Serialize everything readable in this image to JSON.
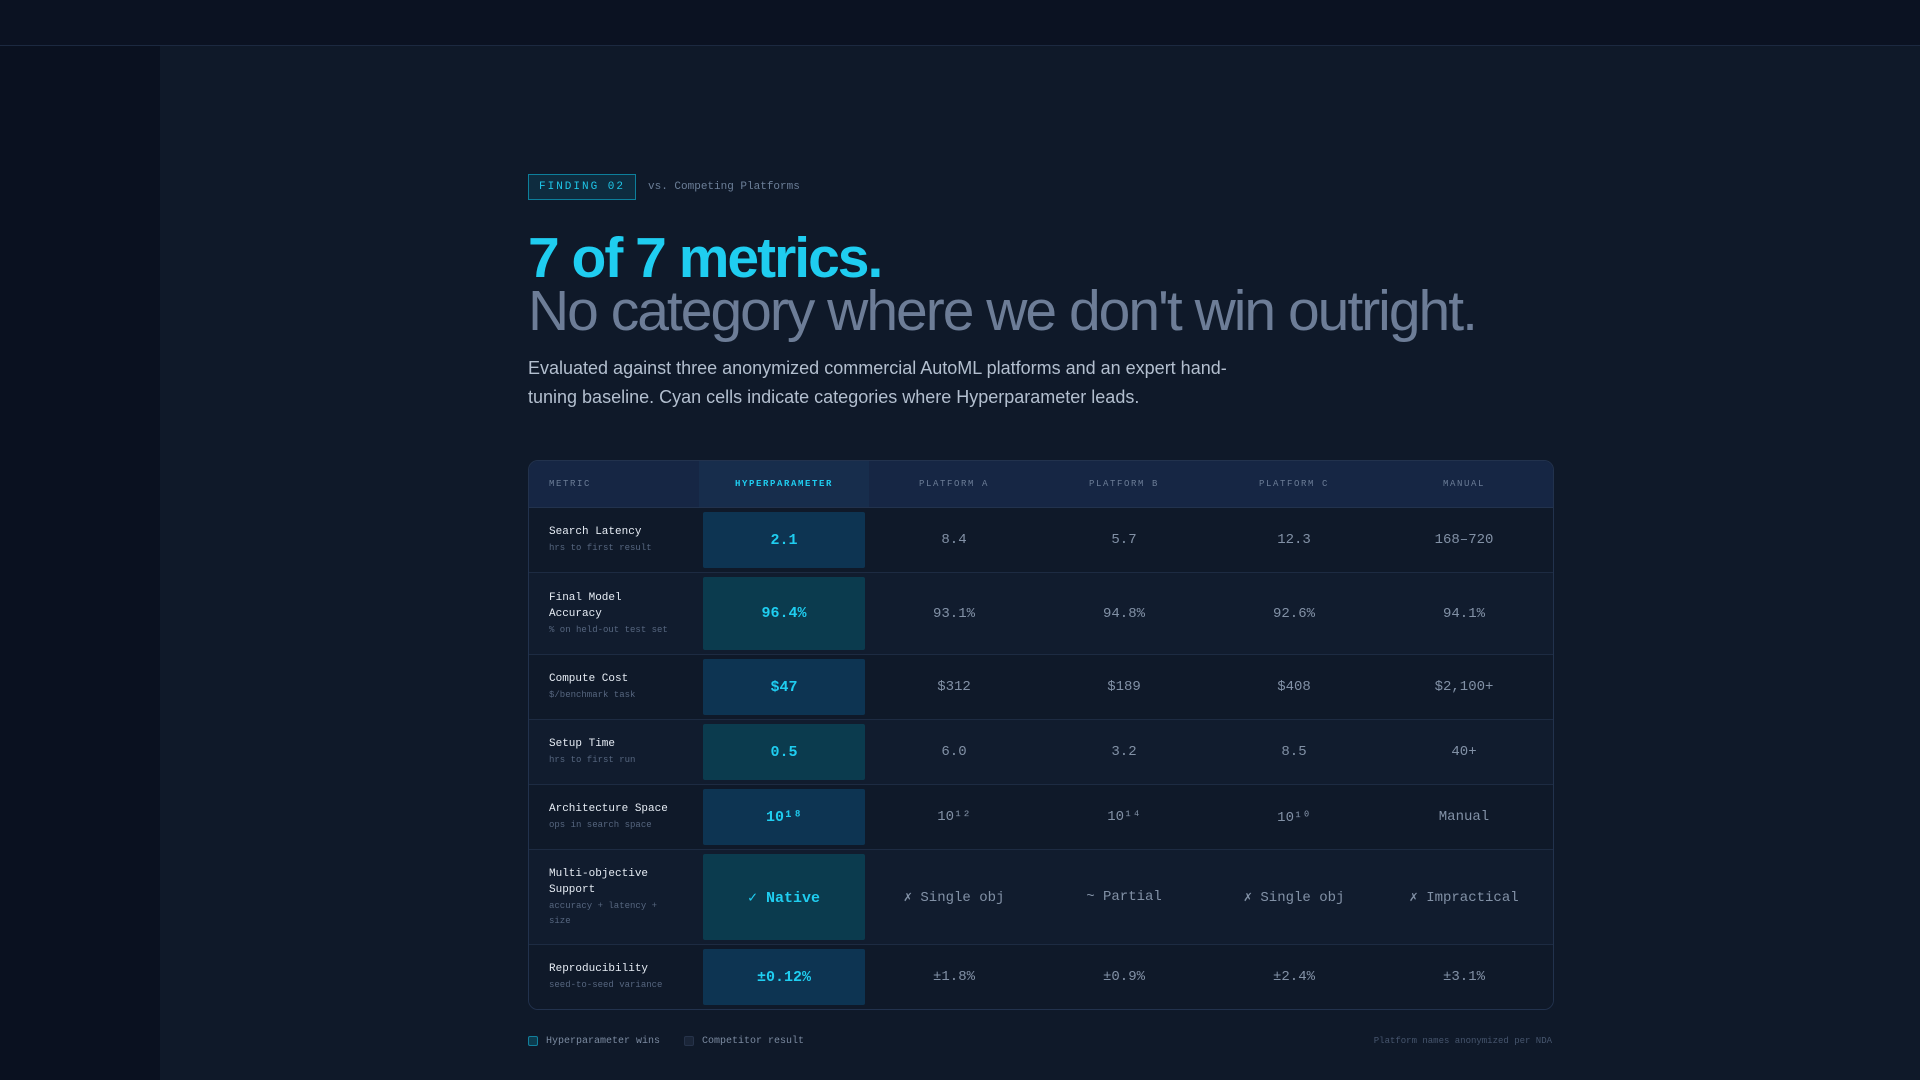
{
  "eyebrow": {
    "tag": "FINDING 02",
    "text": "vs. Competing Platforms"
  },
  "headline": {
    "line1": "7 of 7 metrics.",
    "line2": "No category where we don't win outright."
  },
  "lede": "Evaluated against three anonymized commercial AutoML platforms and an expert hand-tuning baseline. Cyan cells indicate categories where Hyperparameter leads.",
  "table": {
    "headers": [
      "METRIC",
      "HYPERPARAMETER",
      "PLATFORM A",
      "PLATFORM B",
      "PLATFORM C",
      "MANUAL"
    ],
    "rows": [
      {
        "name": "Search Latency",
        "sub": "hrs to first result",
        "hp": "2.1",
        "a": "8.4",
        "b": "5.7",
        "c": "12.3",
        "manual": "168–720"
      },
      {
        "name": "Final Model Accuracy",
        "sub": "% on held-out test set",
        "hp": "96.4%",
        "a": "93.1%",
        "b": "94.8%",
        "c": "92.6%",
        "manual": "94.1%"
      },
      {
        "name": "Compute Cost",
        "sub": "$/benchmark task",
        "hp": "$47",
        "a": "$312",
        "b": "$189",
        "c": "$408",
        "manual": "$2,100+"
      },
      {
        "name": "Setup Time",
        "sub": "hrs to first run",
        "hp": "0.5",
        "a": "6.0",
        "b": "3.2",
        "c": "8.5",
        "manual": "40+"
      },
      {
        "name": "Architecture Space",
        "sub": "ops in search space",
        "hp": "10¹⁸",
        "a": "10¹²",
        "b": "10¹⁴",
        "c": "10¹⁰",
        "manual": "Manual"
      },
      {
        "name": "Multi-objective Support",
        "sub": "accuracy + latency + size",
        "hp": "✓ Native",
        "a": "✗ Single obj",
        "b": "~ Partial",
        "c": "✗ Single obj",
        "manual": "✗ Impractical"
      },
      {
        "name": "Reproducibility",
        "sub": "seed-to-seed variance",
        "hp": "±0.12%",
        "a": "±1.8%",
        "b": "±0.9%",
        "c": "±2.4%",
        "manual": "±3.1%"
      }
    ]
  },
  "legend": {
    "win": "Hyperparameter wins",
    "competitor": "Competitor result",
    "note": "Platform names anonymized per NDA"
  },
  "colors": {
    "accent": "#1fcdf0",
    "background": "#0f1929",
    "header": "#162644"
  }
}
